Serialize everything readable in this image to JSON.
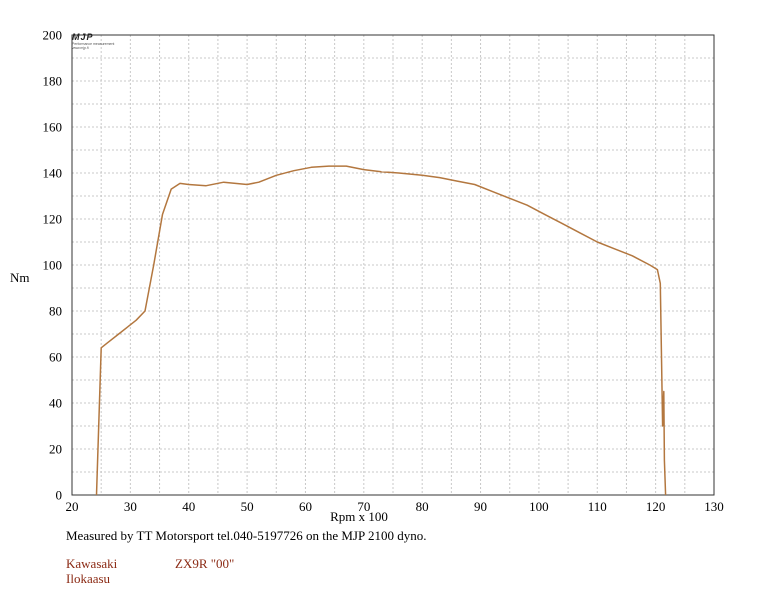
{
  "colors": {
    "curve": "#b3773f",
    "note_text": "#8b2a14",
    "grid": "#c8c8c8",
    "frame": "#333333"
  },
  "logo": {
    "mark": "MJP",
    "subtitle": "Performance measurement",
    "url": "www.mjp.fi"
  },
  "caption": "Measured by TT Motorsport tel.040-5197726 on the MJP 2100 dyno.",
  "notes": {
    "make": "Kawasaki",
    "model": "ZX9R \"00\"",
    "owner": "Ilokaasu"
  },
  "chart_data": {
    "type": "line",
    "title": "",
    "xlabel": "Rpm x 100",
    "ylabel": "Nm",
    "xlim": [
      20,
      130
    ],
    "ylim": [
      0,
      200
    ],
    "x_ticks": [
      20,
      30,
      40,
      50,
      60,
      70,
      80,
      90,
      100,
      110,
      120,
      130
    ],
    "y_ticks": [
      0,
      20,
      40,
      60,
      80,
      100,
      120,
      140,
      160,
      180,
      200
    ],
    "x_tick_labels": [
      "20",
      "30",
      "40",
      "50",
      "60",
      "70",
      "80",
      "90",
      "100",
      "110",
      "120",
      "130"
    ],
    "y_tick_labels": [
      "0",
      "20",
      "40",
      "60",
      "80",
      "100",
      "120",
      "140",
      "160",
      "180",
      "200"
    ],
    "grid": true,
    "series": [
      {
        "points": [
          [
            24.2,
            0
          ],
          [
            25.0,
            64
          ],
          [
            26.0,
            66
          ],
          [
            28.0,
            70
          ],
          [
            31.0,
            76
          ],
          [
            32.5,
            80
          ],
          [
            34.0,
            100
          ],
          [
            35.5,
            122
          ],
          [
            37.0,
            133
          ],
          [
            38.5,
            135.5
          ],
          [
            40.0,
            135
          ],
          [
            43.0,
            134.5
          ],
          [
            46.0,
            136
          ],
          [
            48.0,
            135.5
          ],
          [
            50.0,
            135
          ],
          [
            52.0,
            136
          ],
          [
            55.0,
            139
          ],
          [
            58.0,
            141
          ],
          [
            61.0,
            142.5
          ],
          [
            64.0,
            143
          ],
          [
            67.0,
            143
          ],
          [
            70.0,
            141.5
          ],
          [
            73.0,
            140.5
          ],
          [
            76.0,
            140
          ],
          [
            80.0,
            139
          ],
          [
            83.0,
            138
          ],
          [
            86.0,
            136.5
          ],
          [
            89.0,
            135
          ],
          [
            92.0,
            132
          ],
          [
            95.0,
            129
          ],
          [
            98.0,
            126
          ],
          [
            101.0,
            122
          ],
          [
            104.0,
            118
          ],
          [
            107.0,
            114
          ],
          [
            110.0,
            110
          ],
          [
            113.0,
            107
          ],
          [
            116.0,
            104
          ],
          [
            119.0,
            100
          ],
          [
            120.3,
            98
          ],
          [
            120.8,
            92
          ],
          [
            121.0,
            60
          ],
          [
            121.2,
            30
          ],
          [
            121.4,
            45
          ],
          [
            121.5,
            15
          ],
          [
            121.7,
            0
          ]
        ]
      }
    ]
  }
}
